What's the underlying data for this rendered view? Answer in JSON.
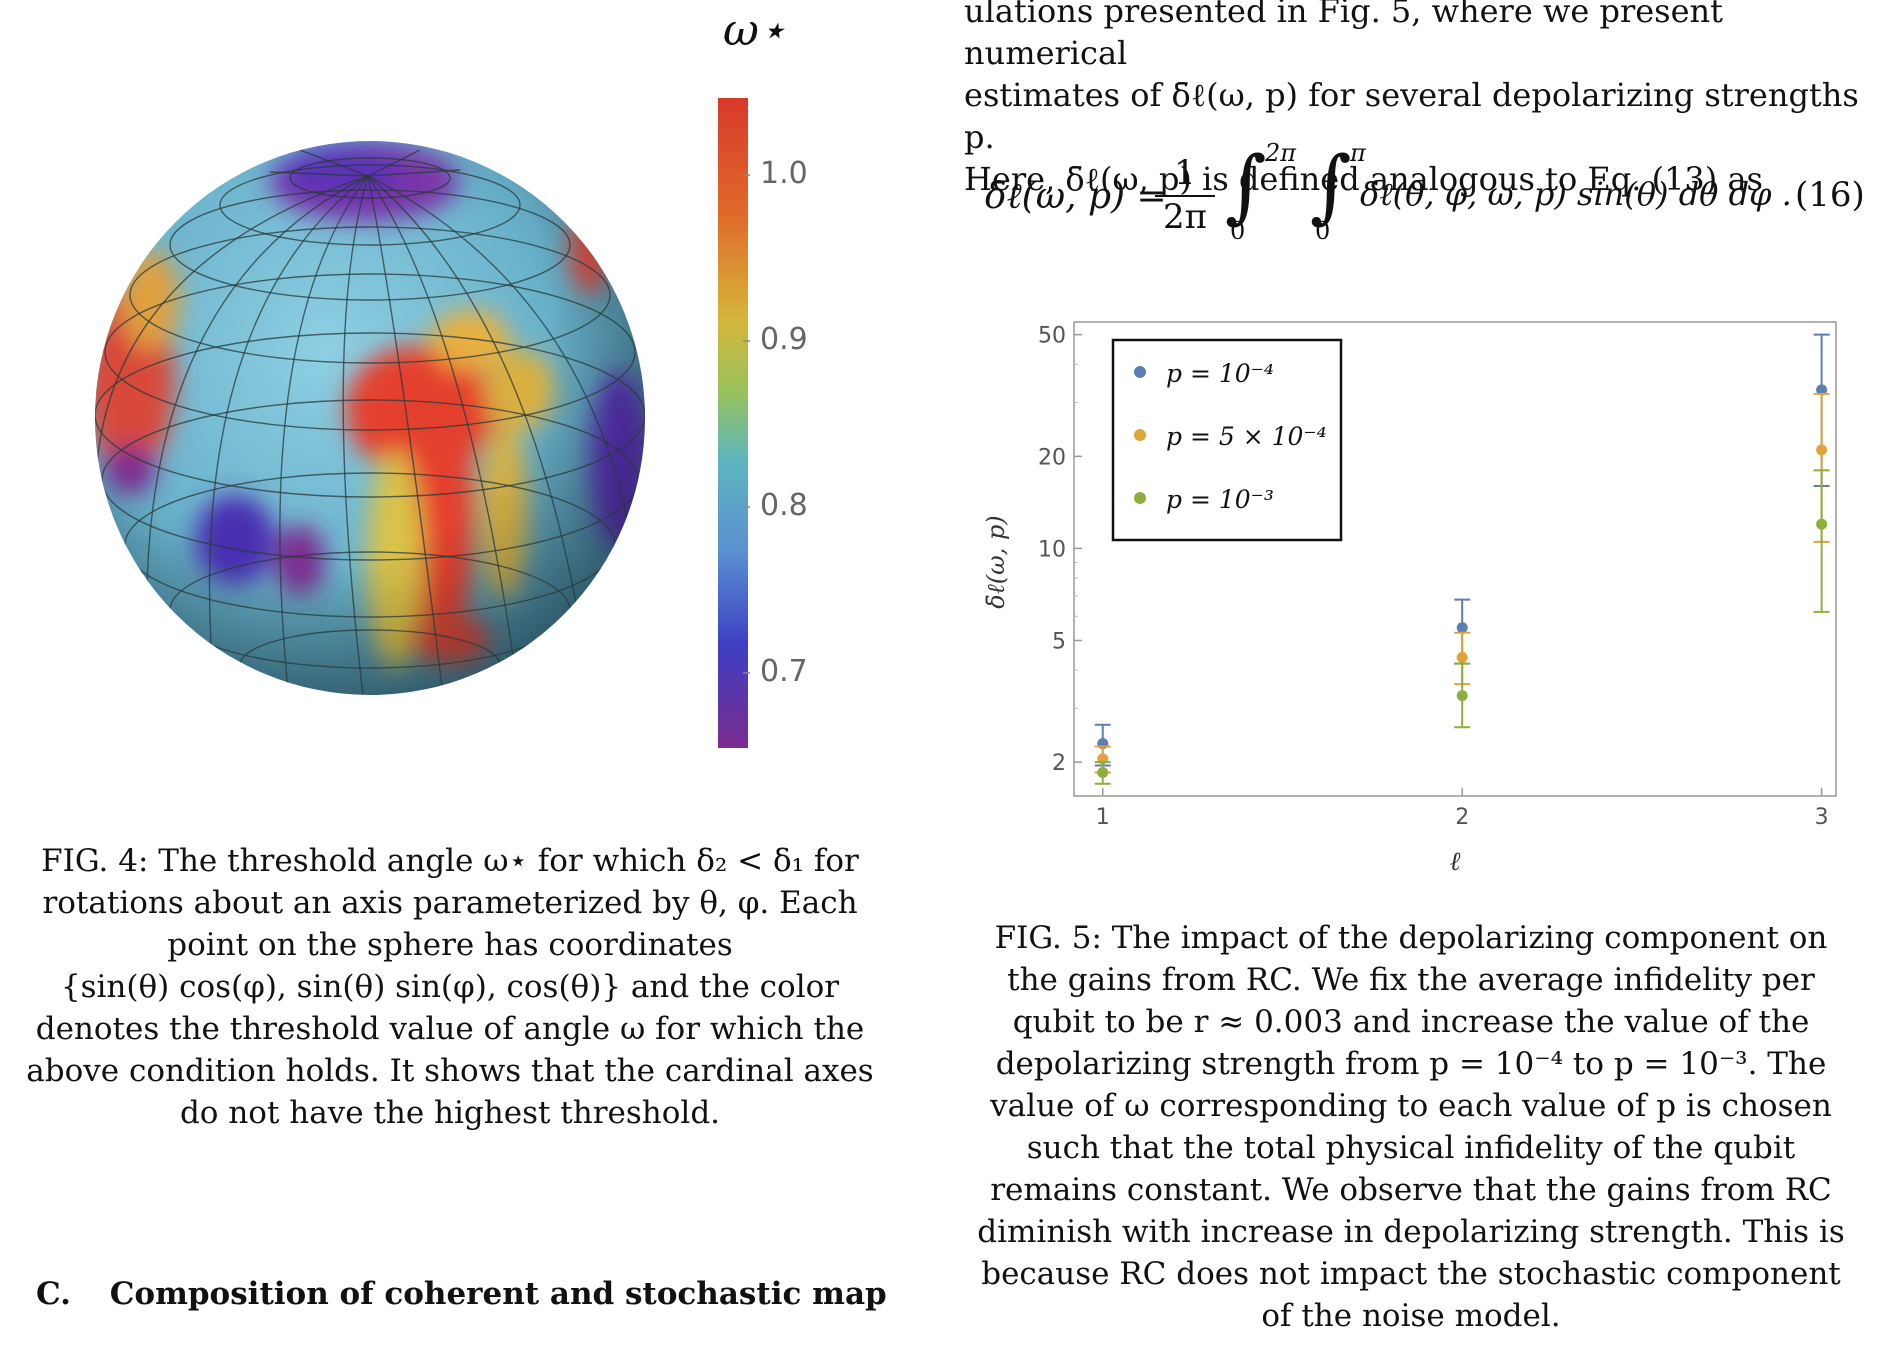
{
  "top_text": {
    "line1": "ulations presented in Fig. 5, where we present numerical",
    "line2": "estimates of δ̄ℓ(ω, p) for several depolarizing strengths p.",
    "line3": "Here, δ̄ℓ(ω, p) is defined analogous to Eq. (13) as"
  },
  "equation": {
    "lhs": "δ̄ℓ(ω, p) =",
    "num": "1",
    "den": "2π",
    "upper1": "2π",
    "lower1": "0",
    "upper2": "π",
    "lower2": "0",
    "integrand": "δℓ(θ, φ, ω, p)  sin(θ) dθ dφ .",
    "number": "(16)"
  },
  "colorbar": {
    "label": "ω⋆",
    "ticks": [
      "1.0",
      "0.9",
      "0.8",
      "0.7"
    ]
  },
  "fig4_caption": {
    "lines": [
      "FIG. 4: The threshold angle ω⋆ for which δ₂ < δ₁ for",
      "rotations about an axis parameterized by θ, φ. Each",
      "point on the sphere has coordinates",
      "{sin(θ) cos(φ), sin(θ) sin(φ), cos(θ)} and the color",
      "denotes the threshold value of angle ω for which the",
      "above condition holds. It shows that the cardinal axes",
      "do not have the highest threshold."
    ]
  },
  "section_heading": {
    "number": "C.",
    "title": "Composition of coherent and stochastic map"
  },
  "fig5_caption": {
    "lines": [
      "FIG. 5: The impact of the depolarizing component on",
      "the gains from RC. We fix the average infidelity per",
      "qubit to be r ≈ 0.003 and increase the value of the",
      "depolarizing strength from p = 10⁻⁴ to p = 10⁻³. The",
      "value of ω corresponding to each value of p is chosen",
      "such that the total physical infidelity of the qubit",
      "remains constant. We observe that the gains from RC",
      "diminish with increase in depolarizing strength. This is",
      "because RC does not impact the stochastic component",
      "of the noise model."
    ]
  },
  "chart_data": {
    "type": "scatter",
    "xlabel": "ℓ",
    "ylabel": "δ̄ℓ(ω, p)",
    "x_ticks": [
      "1",
      "2",
      "3"
    ],
    "y_ticks": [
      "2",
      "5",
      "10",
      "20",
      "50"
    ],
    "y_scale": "log",
    "ylim": [
      1.55,
      55
    ],
    "xlim": [
      0.92,
      3.04
    ],
    "legend_position": "top-left",
    "series": [
      {
        "name": "p = 10⁻⁴",
        "color": "#5b7fb5",
        "points": [
          {
            "x": 1,
            "y": 2.3,
            "lo": 1.95,
            "hi": 2.65
          },
          {
            "x": 2,
            "y": 5.5,
            "lo": 4.2,
            "hi": 6.8
          },
          {
            "x": 3,
            "y": 33,
            "lo": 16,
            "hi": 50
          }
        ]
      },
      {
        "name": "p = 5 × 10⁻⁴",
        "color": "#e0a43b",
        "points": [
          {
            "x": 1,
            "y": 2.05,
            "lo": 1.85,
            "hi": 2.25
          },
          {
            "x": 2,
            "y": 4.4,
            "lo": 3.6,
            "hi": 5.3
          },
          {
            "x": 3,
            "y": 21,
            "lo": 10.5,
            "hi": 32
          }
        ]
      },
      {
        "name": "p = 10⁻³",
        "color": "#8fae3e",
        "points": [
          {
            "x": 1,
            "y": 1.85,
            "lo": 1.7,
            "hi": 2.0
          },
          {
            "x": 2,
            "y": 3.3,
            "lo": 2.6,
            "hi": 4.2
          },
          {
            "x": 3,
            "y": 12,
            "lo": 6.2,
            "hi": 18
          }
        ]
      }
    ]
  }
}
